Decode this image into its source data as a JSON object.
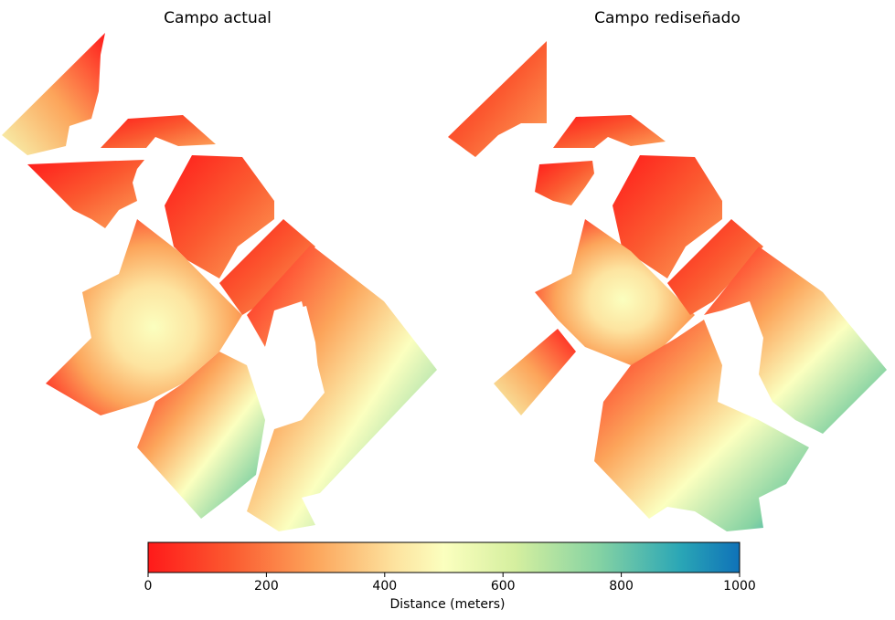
{
  "panels": [
    {
      "title": "Campo actual"
    },
    {
      "title": "Campo rediseñado"
    }
  ],
  "colorbar": {
    "label": "Distance (meters)",
    "min": 0,
    "max": 1000,
    "ticks": [
      "0",
      "200",
      "400",
      "600",
      "800",
      "1000"
    ],
    "colormap": "Spectral",
    "colors": [
      "#ff1a1a",
      "#fb7a3a",
      "#fdd58a",
      "#fbffbf",
      "#bfe8a2",
      "#6ccca4",
      "#1597b5",
      "#0f72b8"
    ]
  }
}
